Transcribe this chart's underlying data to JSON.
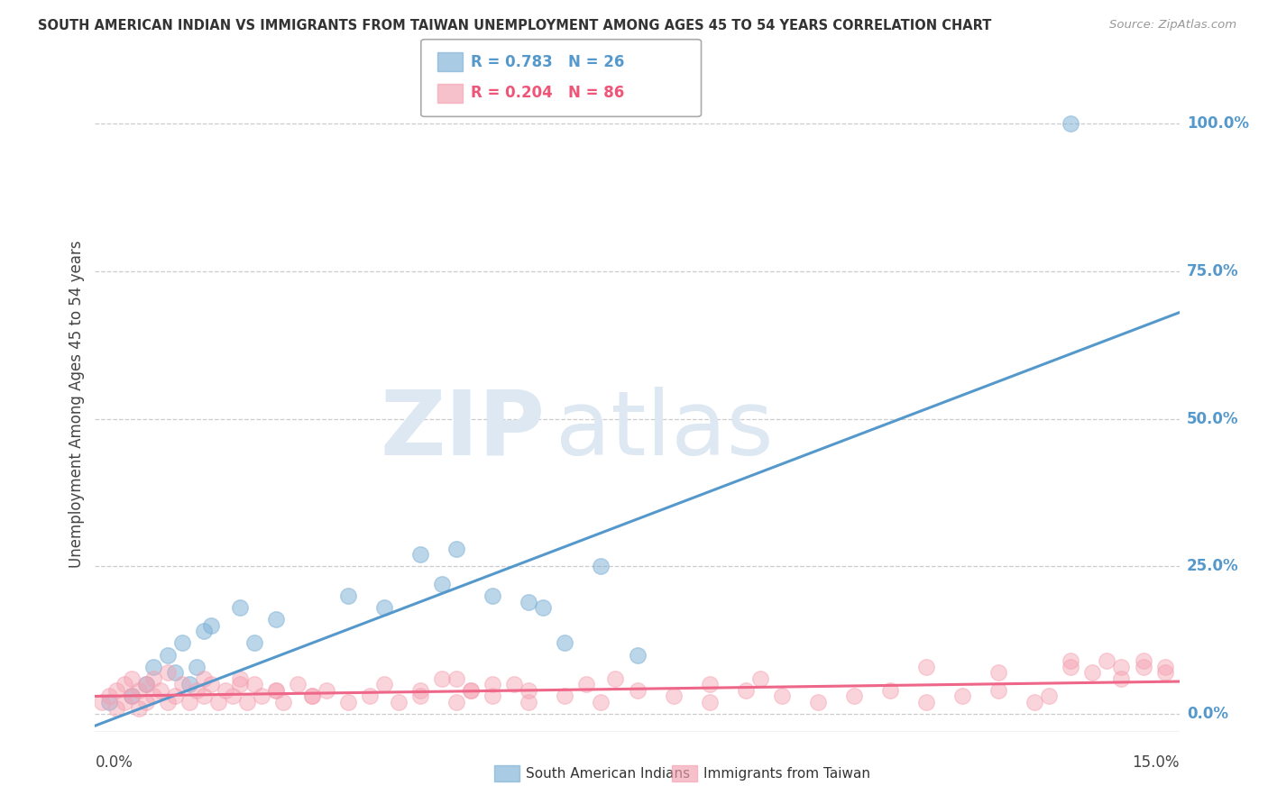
{
  "title": "SOUTH AMERICAN INDIAN VS IMMIGRANTS FROM TAIWAN UNEMPLOYMENT AMONG AGES 45 TO 54 YEARS CORRELATION CHART",
  "source": "Source: ZipAtlas.com",
  "ylabel": "Unemployment Among Ages 45 to 54 years",
  "legend1_label": "South American Indians",
  "legend2_label": "Immigrants from Taiwan",
  "R1": "0.783",
  "N1": "26",
  "R2": "0.204",
  "N2": "86",
  "color1": "#7BAFD4",
  "color2": "#F4A0B0",
  "color1_line": "#5599CC",
  "color2_line": "#EE6688",
  "xlim": [
    0.0,
    15.0
  ],
  "ylim": [
    -3.0,
    108.0
  ],
  "ytick_values": [
    0,
    25,
    50,
    75,
    100
  ],
  "blue_scatter_x": [
    0.2,
    0.5,
    0.7,
    0.8,
    1.0,
    1.1,
    1.2,
    1.3,
    1.4,
    1.5,
    1.6,
    2.0,
    2.2,
    2.5,
    3.5,
    4.0,
    4.5,
    4.8,
    5.0,
    5.5,
    6.0,
    6.2,
    6.5,
    7.0,
    7.5,
    13.5
  ],
  "blue_scatter_y": [
    2,
    3,
    5,
    8,
    10,
    7,
    12,
    5,
    8,
    14,
    15,
    18,
    12,
    16,
    20,
    18,
    27,
    22,
    28,
    20,
    19,
    18,
    12,
    25,
    10,
    100
  ],
  "pink_scatter_x": [
    0.1,
    0.2,
    0.3,
    0.3,
    0.4,
    0.4,
    0.5,
    0.5,
    0.6,
    0.6,
    0.7,
    0.7,
    0.8,
    0.8,
    0.9,
    1.0,
    1.0,
    1.1,
    1.2,
    1.3,
    1.4,
    1.5,
    1.5,
    1.6,
    1.7,
    1.8,
    1.9,
    2.0,
    2.1,
    2.2,
    2.3,
    2.5,
    2.6,
    2.8,
    3.0,
    3.2,
    3.5,
    3.8,
    4.0,
    4.2,
    4.5,
    4.5,
    5.0,
    5.0,
    5.2,
    5.5,
    5.8,
    6.0,
    6.0,
    6.5,
    7.0,
    7.5,
    8.0,
    8.5,
    9.0,
    9.5,
    10.0,
    10.5,
    11.0,
    11.5,
    12.0,
    12.5,
    13.0,
    13.2,
    13.5,
    13.8,
    14.0,
    14.2,
    14.5,
    14.8,
    2.0,
    2.5,
    3.0,
    5.5,
    4.8,
    5.2,
    6.8,
    7.2,
    8.5,
    9.2,
    11.5,
    12.5,
    13.5,
    14.2,
    14.5,
    14.8
  ],
  "pink_scatter_y": [
    2,
    3,
    1,
    4,
    2,
    5,
    3,
    6,
    1,
    4,
    2,
    5,
    3,
    6,
    4,
    2,
    7,
    3,
    5,
    2,
    4,
    6,
    3,
    5,
    2,
    4,
    3,
    6,
    2,
    5,
    3,
    4,
    2,
    5,
    3,
    4,
    2,
    3,
    5,
    2,
    4,
    3,
    6,
    2,
    4,
    3,
    5,
    2,
    4,
    3,
    2,
    4,
    3,
    2,
    4,
    3,
    2,
    3,
    4,
    2,
    3,
    4,
    2,
    3,
    8,
    7,
    9,
    6,
    8,
    7,
    5,
    4,
    3,
    5,
    6,
    4,
    5,
    6,
    5,
    6,
    8,
    7,
    9,
    8,
    9,
    8
  ],
  "blue_line_x": [
    0.0,
    15.0
  ],
  "blue_line_y": [
    -2.0,
    68.0
  ],
  "pink_line_x": [
    0.0,
    15.0
  ],
  "pink_line_y": [
    3.0,
    5.5
  ],
  "watermark_color": "#DDE8F2"
}
